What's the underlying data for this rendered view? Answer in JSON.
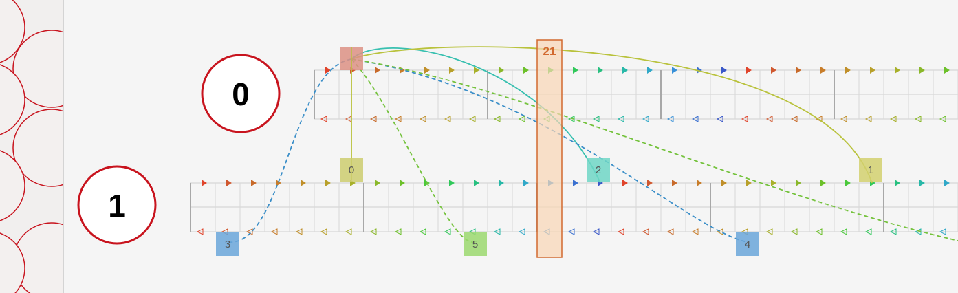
{
  "timelines": [
    {
      "id": "timeline-0",
      "label": "0"
    },
    {
      "id": "timeline-1",
      "label": "1"
    }
  ],
  "cursor": {
    "label": "21",
    "color": "#d2692f",
    "fill": "#f9d6b5"
  },
  "source_marker": {
    "color": "#dc9184"
  },
  "markers": [
    {
      "label": "0",
      "color": "#cccc6e"
    },
    {
      "label": "2",
      "color": "#6fd6c6"
    },
    {
      "label": "1",
      "color": "#d2d06e"
    },
    {
      "label": "3",
      "color": "#6aa6d9"
    },
    {
      "label": "5",
      "color": "#9bd86e"
    },
    {
      "label": "4",
      "color": "#6aa6d9"
    }
  ],
  "colors": {
    "ring": "#c8141e",
    "arc_olive": "#b9c23c",
    "arc_teal": "#38c0b0",
    "arc_blue": "#3a8ec8",
    "arc_green": "#74c23c"
  }
}
